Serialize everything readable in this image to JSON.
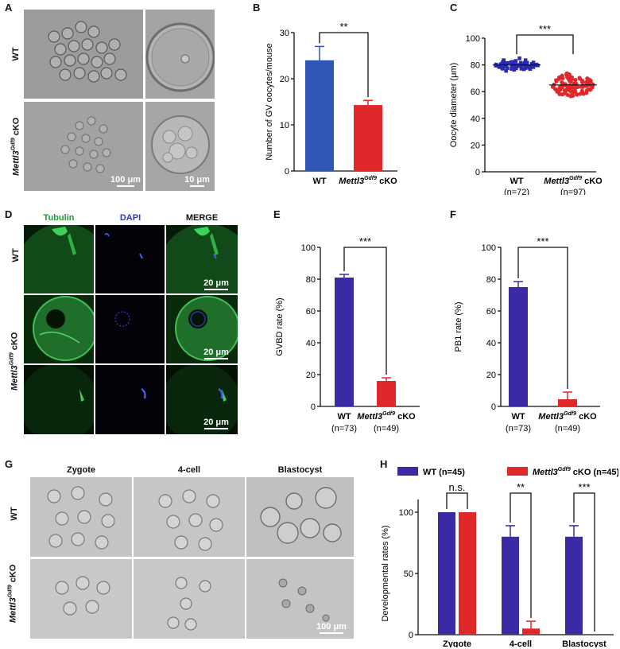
{
  "panels": {
    "a": "A",
    "b": "B",
    "c": "C",
    "d": "D",
    "e": "E",
    "f": "F",
    "g": "G",
    "h": "H"
  },
  "panel_a": {
    "row_wt": "WT",
    "row_cko_gene": "Mettl3",
    "row_cko_sup": "Gdf9",
    "row_cko_suffix": " cKO",
    "scale_left": "100 μm",
    "scale_right": "10 μm"
  },
  "panel_d": {
    "col_tubulin": "Tubulin",
    "col_dapi": "DAPI",
    "col_merge": "MERGE",
    "row_wt": "WT",
    "row_cko_gene": "Mettl3",
    "row_cko_sup": "Gdf9",
    "row_cko_suffix": " cKO",
    "scale_1": "20 μm",
    "scale_2": "20 μm",
    "scale_3": "20 μm"
  },
  "panel_g": {
    "col_zygote": "Zygote",
    "col_4cell": "4-cell",
    "col_blast": "Blastocyst",
    "row_wt": "WT",
    "row_cko_gene": "Mettl3",
    "row_cko_sup": "Gdf9",
    "row_cko_suffix": " cKO",
    "scale": "100 μm"
  },
  "colors": {
    "wt_blue": "#2f55b5",
    "cko_red": "#e0282a",
    "wt_purple": "#3a2aa4",
    "scatter_blue": "#2b2bb0"
  },
  "chart_data": [
    {
      "id": "B",
      "type": "bar",
      "ylabel": "Number of GV oocytes/mouse",
      "ylim": [
        0,
        30
      ],
      "yticks": [
        0,
        10,
        20,
        30
      ],
      "categories": [
        "WT",
        "Mettl3"
      ],
      "category_sup": [
        "",
        "Gdf9"
      ],
      "category_suffix": [
        "",
        " cKO"
      ],
      "values": [
        24,
        14.3
      ],
      "errors": [
        3,
        1
      ],
      "significance": "**"
    },
    {
      "id": "C",
      "type": "scatter",
      "ylabel": "Oocyte diameter (μm)",
      "ylim": [
        0,
        100
      ],
      "yticks": [
        0,
        20,
        40,
        60,
        80,
        100
      ],
      "categories": [
        "WT",
        "Mettl3"
      ],
      "category_sup": [
        "",
        "Gdf9"
      ],
      "category_suffix": [
        "",
        " cKO"
      ],
      "ns": [
        "(n=72)",
        "(n=97)"
      ],
      "means": [
        80,
        65
      ],
      "sd": [
        3.5,
        7
      ],
      "counts": [
        72,
        97
      ],
      "significance": "***"
    },
    {
      "id": "E",
      "type": "bar",
      "ylabel": "GVBD rate (%)",
      "ylim": [
        0,
        100
      ],
      "yticks": [
        0,
        20,
        40,
        60,
        80,
        100
      ],
      "categories": [
        "WT",
        "Mettl3"
      ],
      "category_sup": [
        "",
        "Gdf9"
      ],
      "category_suffix": [
        "",
        " cKO"
      ],
      "ns": [
        "(n=73)",
        "(n=49)"
      ],
      "values": [
        81,
        16
      ],
      "errors": [
        2,
        2
      ],
      "significance": "***"
    },
    {
      "id": "F",
      "type": "bar",
      "ylabel": "PB1 rate (%)",
      "ylim": [
        0,
        100
      ],
      "yticks": [
        0,
        20,
        40,
        60,
        80,
        100
      ],
      "categories": [
        "WT",
        "Mettl3"
      ],
      "category_sup": [
        "",
        "Gdf9"
      ],
      "category_suffix": [
        "",
        " cKO"
      ],
      "ns": [
        "(n=73)",
        "(n=49)"
      ],
      "values": [
        75,
        4.5
      ],
      "errors": [
        3.5,
        4.5
      ],
      "significance": "***"
    },
    {
      "id": "H",
      "type": "bar",
      "ylabel": "Developmental rates (%)",
      "ylim": [
        0,
        100
      ],
      "yticks": [
        0,
        50,
        100
      ],
      "categories": [
        "Zygote",
        "4-cell",
        "Blastocyst"
      ],
      "series": [
        {
          "name": "WT (n=45)",
          "values": [
            100,
            80,
            80
          ],
          "errors": [
            0,
            9,
            9
          ]
        },
        {
          "name_gene": "Mettl3",
          "name_sup": "Gdf9",
          "name_suffix": " cKO (n=45)",
          "values": [
            100,
            5,
            0
          ],
          "errors": [
            0,
            6,
            0
          ]
        }
      ],
      "significance": [
        "n.s.",
        "**",
        "***"
      ],
      "legend": "top"
    }
  ]
}
